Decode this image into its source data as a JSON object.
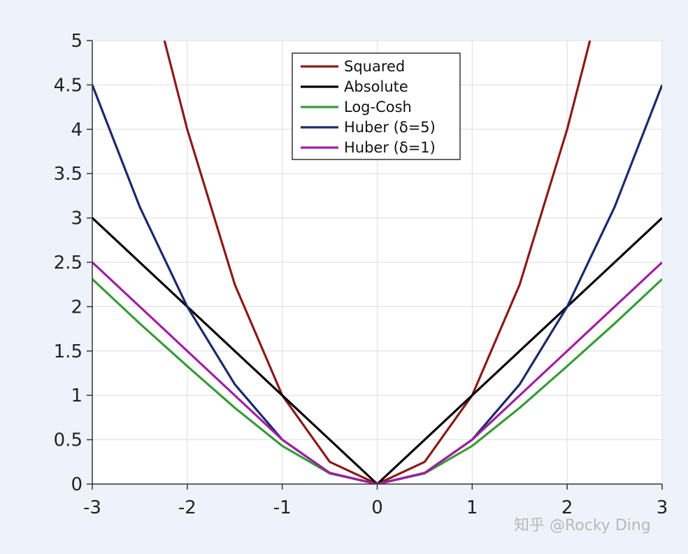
{
  "chart_data": {
    "type": "line",
    "title": "",
    "xlabel": "",
    "ylabel": "",
    "xlim": [
      -3,
      3
    ],
    "ylim": [
      0,
      5
    ],
    "xticks": [
      -3,
      -2,
      -1,
      0,
      1,
      2,
      3
    ],
    "yticks": [
      0,
      0.5,
      1,
      1.5,
      2,
      2.5,
      3,
      3.5,
      4,
      4.5,
      5
    ],
    "xtick_labels": [
      "-3",
      "-2",
      "-1",
      "0",
      "1",
      "2",
      "3"
    ],
    "ytick_labels": [
      "0",
      "0.5",
      "1",
      "1.5",
      "2",
      "2.5",
      "3",
      "3.5",
      "4",
      "4.5",
      "5"
    ],
    "grid": true,
    "legend_position": "top-center",
    "series": [
      {
        "name": "Squared",
        "color": "#8b1a1a",
        "x": [
          -2.24,
          -2,
          -1.5,
          -1,
          -0.5,
          0,
          0.5,
          1,
          1.5,
          2,
          2.24
        ],
        "y": [
          5.0,
          4.0,
          2.25,
          1.0,
          0.25,
          0,
          0.25,
          1.0,
          2.25,
          4.0,
          5.0
        ]
      },
      {
        "name": "Absolute",
        "color": "#000000",
        "x": [
          -3,
          0,
          3
        ],
        "y": [
          3,
          0,
          3
        ]
      },
      {
        "name": "Log-Cosh",
        "color": "#3a9a3a",
        "x": [
          -3,
          -2.5,
          -2,
          -1.5,
          -1,
          -0.5,
          0,
          0.5,
          1,
          1.5,
          2,
          2.5,
          3
        ],
        "y": [
          2.31,
          1.81,
          1.33,
          0.86,
          0.43,
          0.12,
          0,
          0.12,
          0.43,
          0.86,
          1.33,
          1.81,
          2.31
        ]
      },
      {
        "name": "Huber (δ=5)",
        "color": "#1a2a6a",
        "x": [
          -3,
          -2.5,
          -2,
          -1.5,
          -1,
          -0.5,
          0,
          0.5,
          1,
          1.5,
          2,
          2.5,
          3
        ],
        "y": [
          4.5,
          3.125,
          2.0,
          1.125,
          0.5,
          0.125,
          0,
          0.125,
          0.5,
          1.125,
          2.0,
          3.125,
          4.5
        ]
      },
      {
        "name": "Huber (δ=1)",
        "color": "#a020a0",
        "x": [
          -3,
          -2,
          -1,
          -0.5,
          0,
          0.5,
          1,
          2,
          3
        ],
        "y": [
          2.5,
          1.5,
          0.5,
          0.125,
          0,
          0.125,
          0.5,
          1.5,
          2.5
        ]
      }
    ]
  },
  "watermark": "知乎 @Rocky Ding"
}
